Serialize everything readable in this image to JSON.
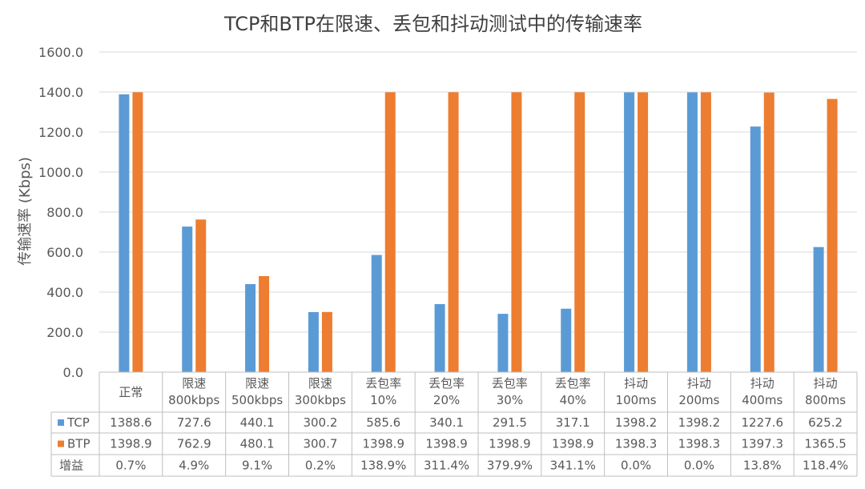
{
  "chart_data": {
    "type": "bar",
    "title": "TCP和BTP在限速、丢包和抖动测试中的传输速率",
    "ylabel": "传输速率 (Kbps)",
    "ylim": [
      0,
      1600
    ],
    "yticks": [
      "0.0",
      "200.0",
      "400.0",
      "600.0",
      "800.0",
      "1000.0",
      "1200.0",
      "1400.0",
      "1600.0"
    ],
    "grid": true,
    "legend": "data-table",
    "categories": [
      [
        "正常"
      ],
      [
        "限速",
        "800kbps"
      ],
      [
        "限速",
        "500kbps"
      ],
      [
        "限速",
        "300kbps"
      ],
      [
        "丢包率",
        "10%"
      ],
      [
        "丢包率",
        "20%"
      ],
      [
        "丢包率",
        "30%"
      ],
      [
        "丢包率",
        "40%"
      ],
      [
        "抖动",
        "100ms"
      ],
      [
        "抖动",
        "200ms"
      ],
      [
        "抖动",
        "400ms"
      ],
      [
        "抖动",
        "800ms"
      ]
    ],
    "series": [
      {
        "name": "TCP",
        "color": "#5B9BD5",
        "values": [
          1388.6,
          727.6,
          440.1,
          300.2,
          585.6,
          340.1,
          291.5,
          317.1,
          1398.2,
          1398.2,
          1227.6,
          625.2
        ],
        "labels": [
          "1388.6",
          "727.6",
          "440.1",
          "300.2",
          "585.6",
          "340.1",
          "291.5",
          "317.1",
          "1398.2",
          "1398.2",
          "1227.6",
          "625.2"
        ]
      },
      {
        "name": "BTP",
        "color": "#ED7D31",
        "values": [
          1398.9,
          762.9,
          480.1,
          300.7,
          1398.9,
          1398.9,
          1398.9,
          1398.9,
          1398.3,
          1398.3,
          1397.3,
          1365.5
        ],
        "labels": [
          "1398.9",
          "762.9",
          "480.1",
          "300.7",
          "1398.9",
          "1398.9",
          "1398.9",
          "1398.9",
          "1398.3",
          "1398.3",
          "1397.3",
          "1365.5"
        ]
      }
    ],
    "extra_rows": [
      {
        "name": "增益",
        "labels": [
          "0.7%",
          "4.9%",
          "9.1%",
          "0.2%",
          "138.9%",
          "311.4%",
          "379.9%",
          "341.1%",
          "0.0%",
          "0.0%",
          "13.8%",
          "118.4%"
        ]
      }
    ]
  }
}
